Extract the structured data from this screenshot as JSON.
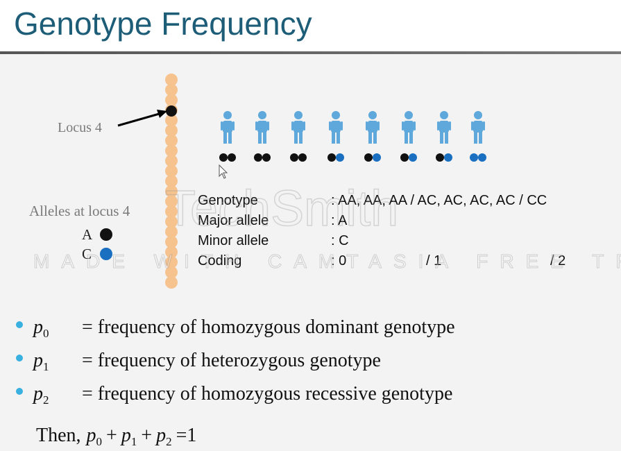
{
  "header": {
    "title": "Genotype Frequency"
  },
  "locus_label": "Locus 4",
  "alleles": {
    "label": "Alleles at locus 4",
    "items": [
      "A",
      "C"
    ]
  },
  "table": {
    "rows": [
      {
        "label": "Genotype",
        "value": ": AA, AA, AA / AC, AC, AC, AC / CC"
      },
      {
        "label": "Major allele",
        "value": ": A"
      },
      {
        "label": "Minor allele",
        "value": ": C"
      },
      {
        "label": "Coding",
        "values": [
          ": 0",
          "/ 1",
          "/ 2"
        ]
      }
    ]
  },
  "bullets": [
    {
      "symbol": "p",
      "sub": "0",
      "text": "= frequency of homozygous dominant genotype"
    },
    {
      "symbol": "p",
      "sub": "1",
      "text": "= frequency of heterozygous genotype"
    },
    {
      "symbol": "p",
      "sub": "2",
      "text": "= frequency of homozygous recessive genotype"
    }
  ],
  "then": {
    "lead": "Then,",
    "terms": [
      {
        "symbol": "p",
        "sub": "0"
      },
      {
        "symbol": "p",
        "sub": "1"
      },
      {
        "symbol": "p",
        "sub": "2"
      }
    ],
    "plus": "+",
    "rhs": "=1"
  },
  "watermark": {
    "brand": "TechSmith",
    "notice": "MADE WITH CAMTASIA FREE TRIAL"
  }
}
